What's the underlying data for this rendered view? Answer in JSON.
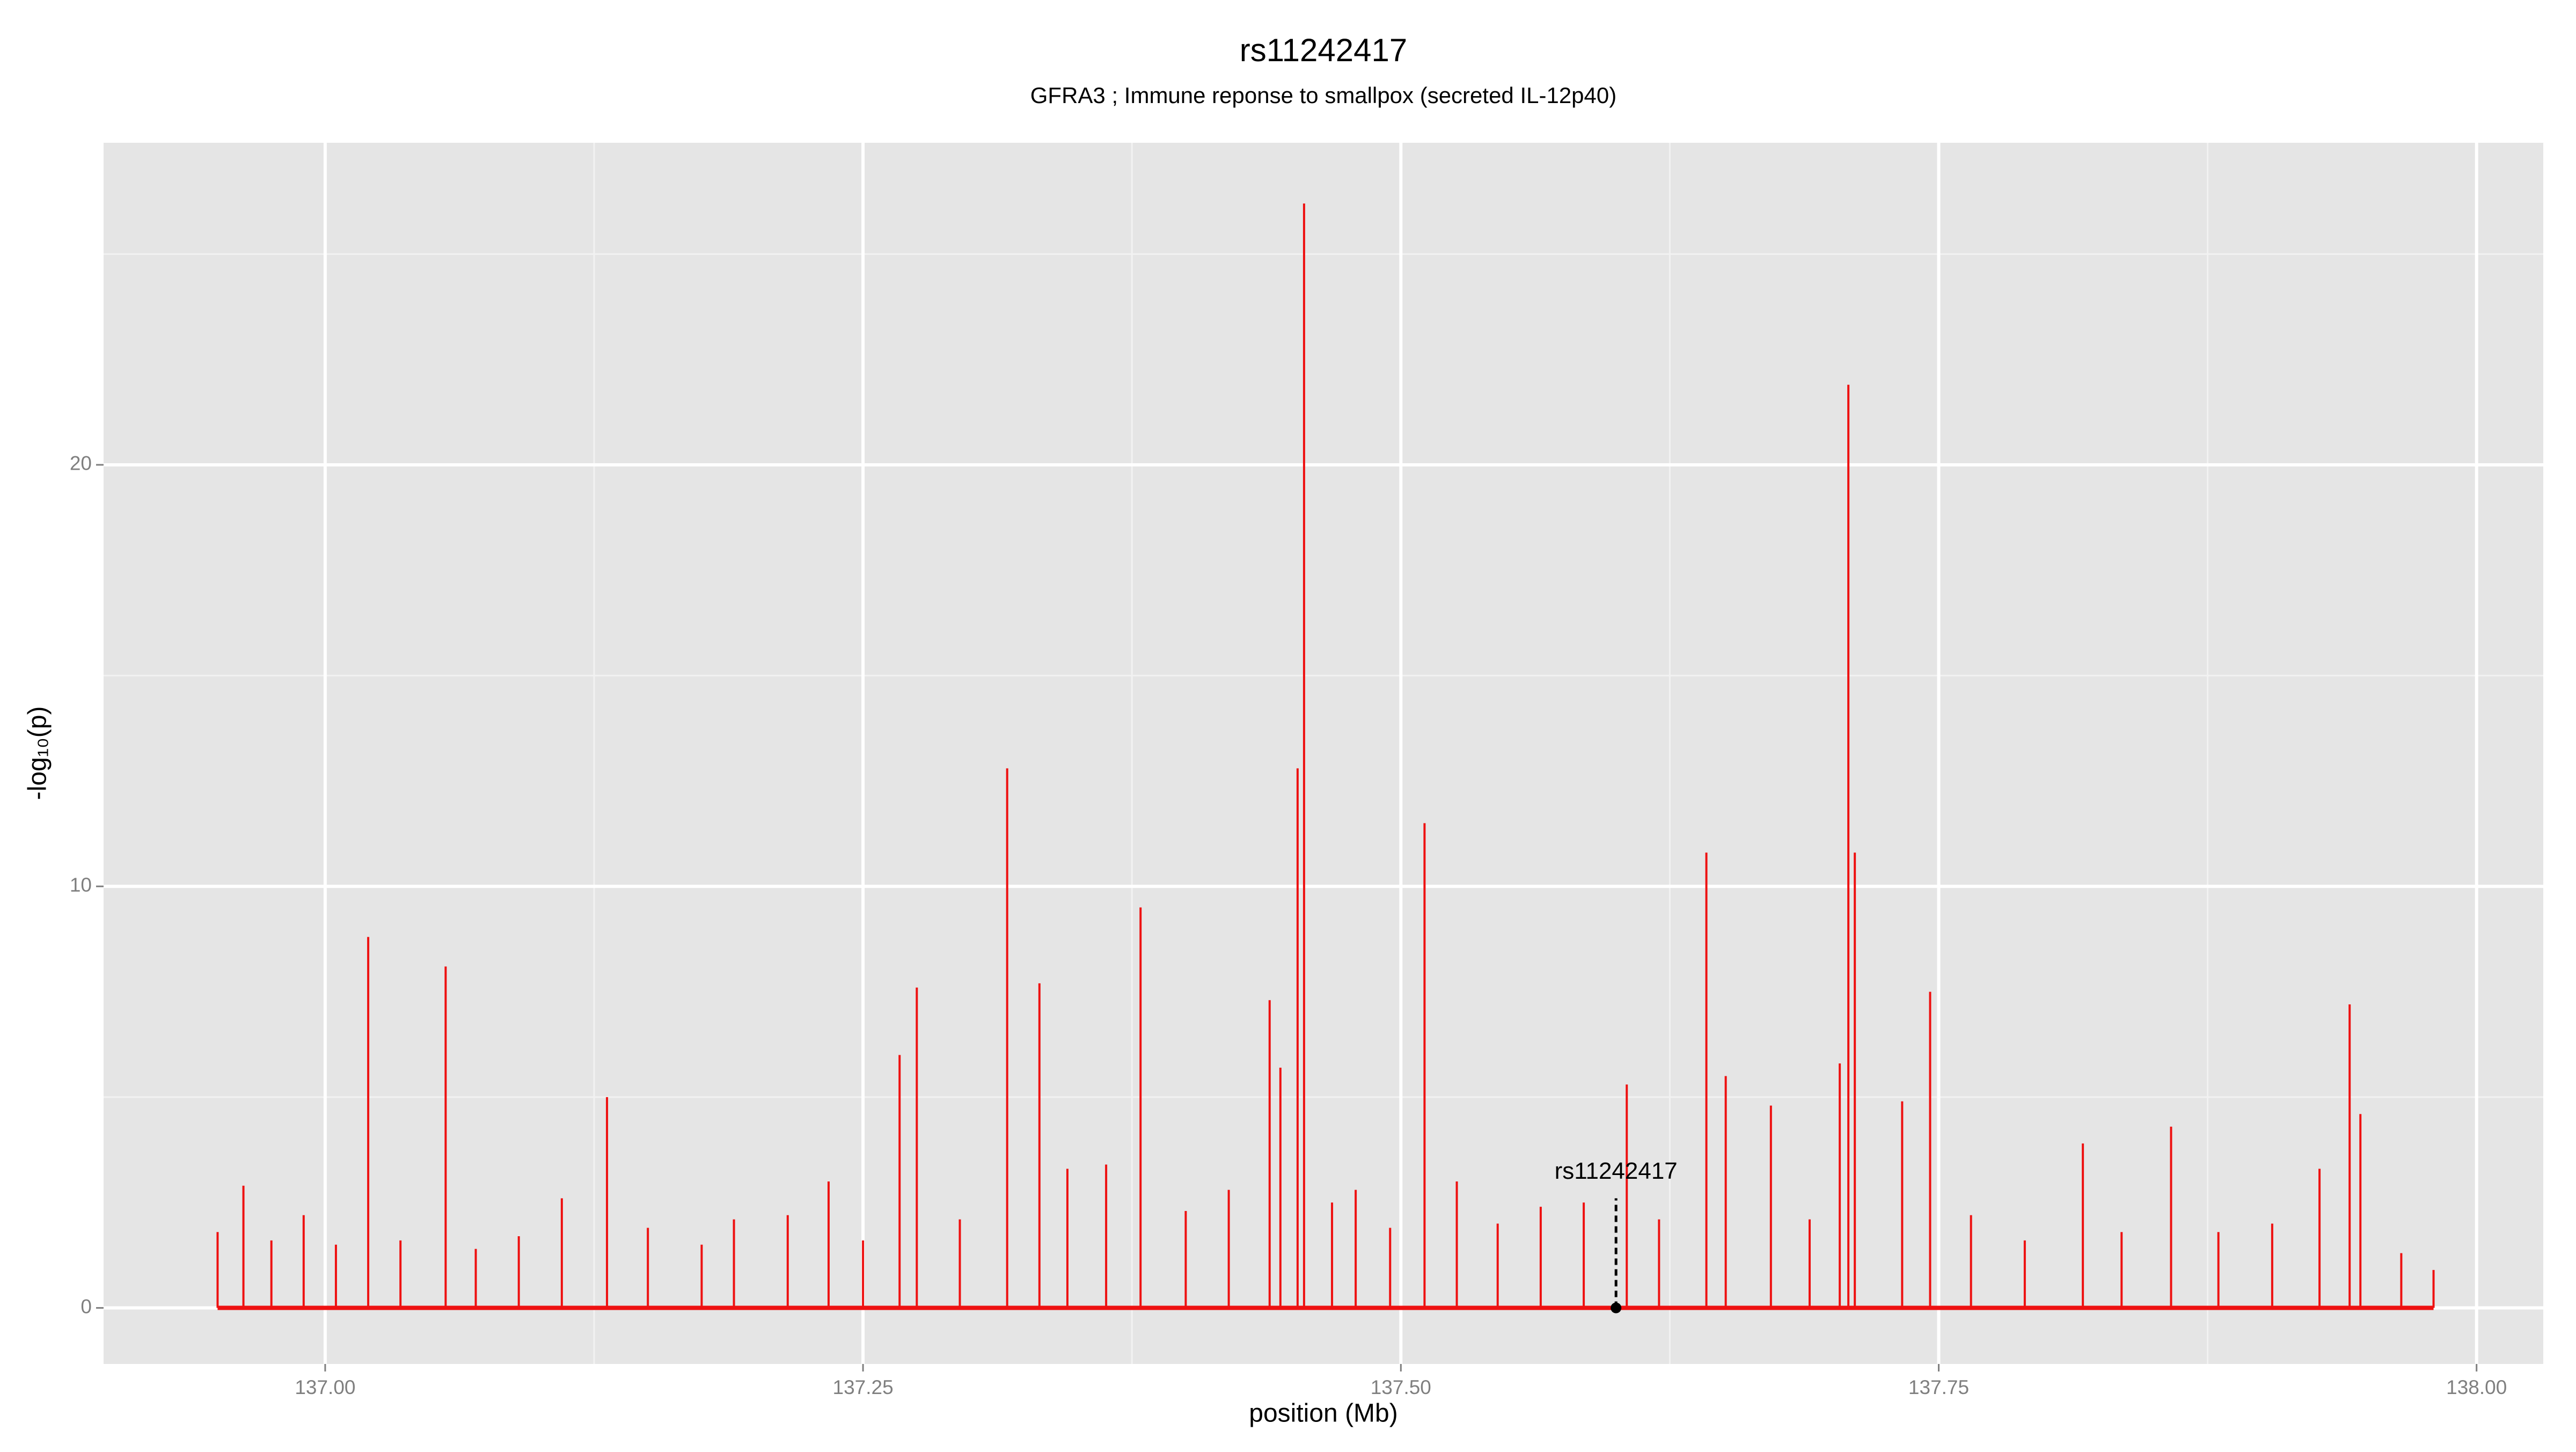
{
  "chart_data": {
    "type": "spike",
    "title": "rs11242417",
    "subtitle": "GFRA3 ; Immune reponse to smallpox (secreted IL-12p40)",
    "x_label": "position (Mb)",
    "y_label": "-log₁₀(p)",
    "color": "#ee1111",
    "x": [
      136.95,
      136.962,
      136.975,
      136.99,
      137.005,
      137.02,
      137.035,
      137.056,
      137.07,
      137.09,
      137.11,
      137.131,
      137.15,
      137.175,
      137.19,
      137.215,
      137.234,
      137.25,
      137.267,
      137.275,
      137.295,
      137.317,
      137.332,
      137.345,
      137.363,
      137.379,
      137.4,
      137.42,
      137.439,
      137.444,
      137.452,
      137.455,
      137.468,
      137.479,
      137.495,
      137.511,
      137.526,
      137.545,
      137.565,
      137.585,
      137.605,
      137.62,
      137.642,
      137.651,
      137.672,
      137.69,
      137.704,
      137.708,
      137.711,
      137.733,
      137.746,
      137.765,
      137.79,
      137.817,
      137.835,
      137.858,
      137.88,
      137.905,
      137.927,
      137.941,
      137.946,
      137.965,
      137.98
    ],
    "values": [
      1.8,
      2.9,
      1.6,
      2.2,
      1.5,
      8.8,
      1.6,
      8.1,
      1.4,
      1.7,
      2.6,
      5.0,
      1.9,
      1.5,
      2.1,
      2.2,
      3.0,
      1.6,
      6.0,
      7.6,
      2.1,
      12.8,
      7.7,
      3.3,
      3.4,
      9.5,
      2.3,
      2.8,
      7.3,
      5.7,
      12.8,
      26.2,
      2.5,
      2.8,
      1.9,
      11.5,
      3.0,
      2.0,
      2.4,
      2.5,
      5.3,
      2.1,
      10.8,
      5.5,
      4.8,
      2.1,
      5.8,
      21.9,
      10.8,
      4.9,
      7.5,
      2.2,
      1.6,
      3.9,
      1.8,
      4.3,
      1.8,
      2.0,
      3.3,
      7.2,
      4.6,
      1.3,
      0.9
    ],
    "annotation": {
      "label": "rs11242417",
      "x": 137.6,
      "y": 0,
      "line_top": 2.6
    },
    "xlim": [
      136.897,
      138.031
    ],
    "ylim": [
      -1.33,
      27.64
    ],
    "xticks": [
      {
        "value": 137.0,
        "label": "137.00"
      },
      {
        "value": 137.25,
        "label": "137.25"
      },
      {
        "value": 137.5,
        "label": "137.50"
      },
      {
        "value": 137.75,
        "label": "137.75"
      },
      {
        "value": 138.0,
        "label": "138.00"
      }
    ],
    "yticks": [
      0,
      10,
      20
    ],
    "xminor": [
      137.125,
      137.375,
      137.625,
      137.875
    ],
    "yminor": [
      5,
      15,
      25
    ],
    "grid": true
  }
}
